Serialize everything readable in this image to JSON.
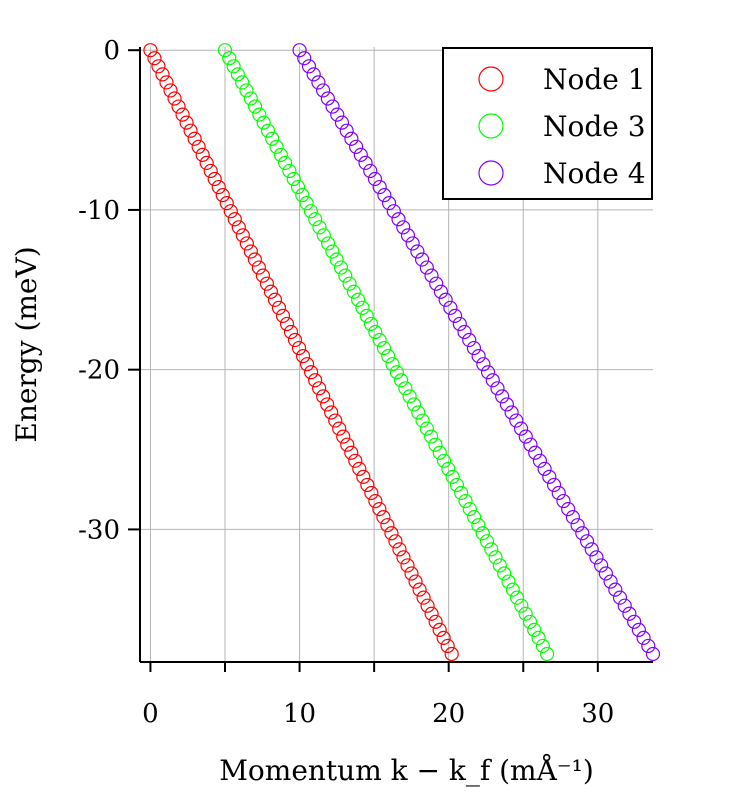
{
  "chart_data": {
    "type": "scatter",
    "title": "",
    "xlabel": "Momentum k − k_f (mÅ⁻¹)",
    "ylabel": "Energy (meV)",
    "xlim": [
      -0.7,
      33.7
    ],
    "ylim": [
      -38.3,
      0.2
    ],
    "x_ticks": [
      0,
      10,
      20,
      30
    ],
    "x_tick_labels": [
      "0",
      "10",
      "20",
      "30"
    ],
    "x_minor_ticks": [
      5,
      15,
      25
    ],
    "y_ticks": [
      0,
      -10,
      -20,
      -30
    ],
    "y_tick_labels": [
      "0",
      "-10",
      "-20",
      "-30"
    ],
    "grid": true,
    "legend_position": "top-right",
    "marker": "open-circle",
    "series": [
      {
        "name": "Node 1",
        "color": "#ff0000",
        "x_start": 0.0,
        "x_end": 20.2,
        "y_start": 0.0,
        "y_end": -37.8,
        "points": 76
      },
      {
        "name": "Node 3",
        "color": "#00ff00",
        "x_start": 5.0,
        "x_end": 26.6,
        "y_start": 0.0,
        "y_end": -37.8,
        "points": 76
      },
      {
        "name": "Node 4",
        "color": "#8000ff",
        "x_start": 10.0,
        "x_end": 33.7,
        "y_start": 0.0,
        "y_end": -37.8,
        "points": 76
      }
    ]
  }
}
